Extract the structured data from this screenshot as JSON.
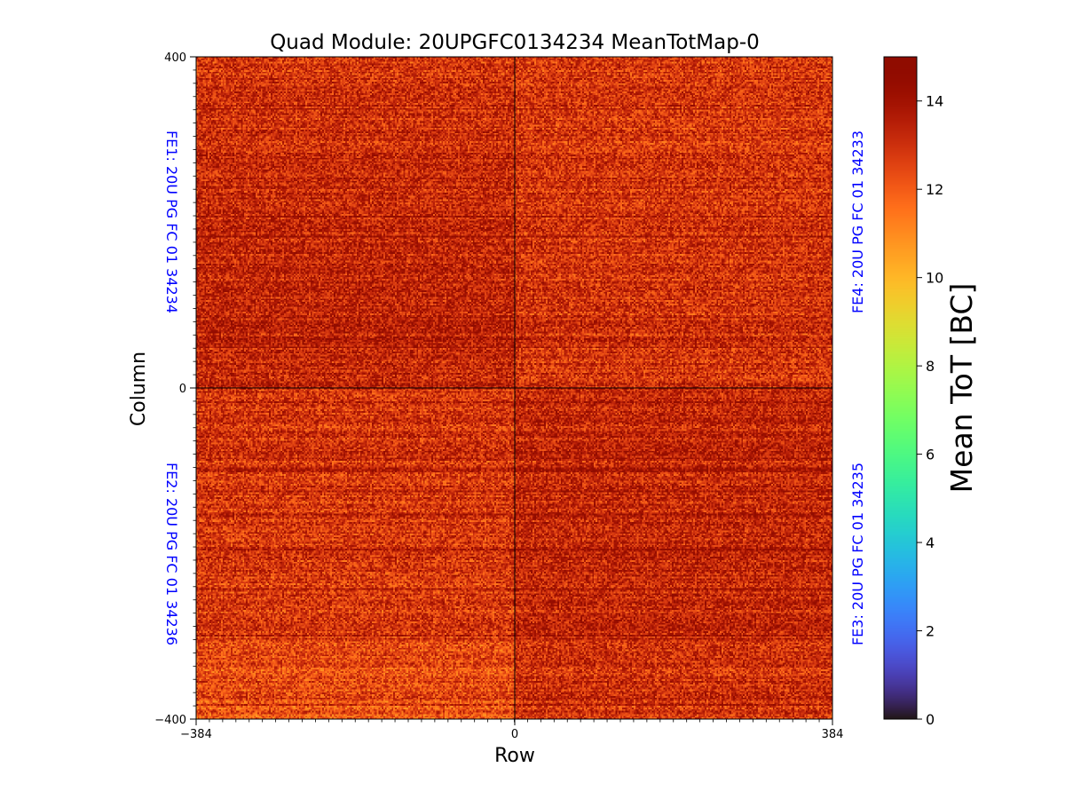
{
  "chart_data": {
    "type": "heatmap",
    "title": "Quad Module: 20UPGFC0134234 MeanTotMap-0",
    "xlabel": "Row",
    "ylabel": "Column",
    "xlim": [
      -384,
      384
    ],
    "ylim": [
      -400,
      400
    ],
    "xticks": [
      "−384",
      "0",
      "384"
    ],
    "yticks": [
      "400",
      "0",
      "−400"
    ],
    "colormap": "turbo",
    "colorbar": {
      "label": "Mean ToT [BC]",
      "range": [
        0,
        15
      ],
      "ticks": [
        "0",
        "2",
        "4",
        "6",
        "8",
        "10",
        "12",
        "14"
      ]
    },
    "front_ends": [
      {
        "label": "FE1: 20U PG FC 01 34234",
        "quadrant": "top-left",
        "typical_value": 13.4
      },
      {
        "label": "FE4: 20U PG FC 01 34233",
        "quadrant": "top-right",
        "typical_value": 13.0
      },
      {
        "label": "FE2: 20U PG FC 01 34236",
        "quadrant": "bottom-left",
        "typical_value": 12.9
      },
      {
        "label": "FE3: 20U PG FC 01 34235",
        "quadrant": "bottom-right",
        "typical_value": 13.3
      }
    ],
    "label_color": "#0000ff",
    "value_range_observed": [
      10.5,
      15
    ]
  }
}
